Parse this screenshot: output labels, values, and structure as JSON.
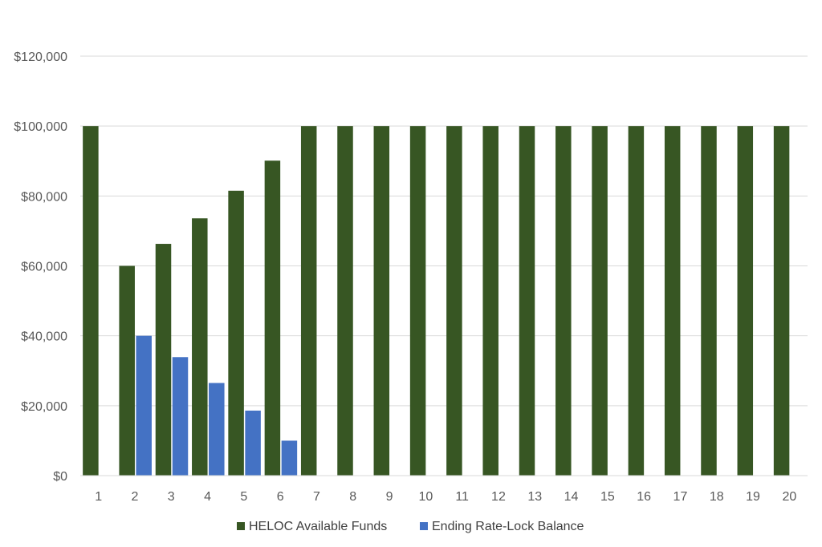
{
  "chart_data": {
    "type": "bar",
    "title": "",
    "xlabel": "",
    "ylabel": "",
    "categories": [
      "1",
      "2",
      "3",
      "4",
      "5",
      "6",
      "7",
      "8",
      "9",
      "10",
      "11",
      "12",
      "13",
      "14",
      "15",
      "16",
      "17",
      "18",
      "19",
      "20"
    ],
    "series": [
      {
        "name": "HELOC Available Funds",
        "color": "#375623",
        "values": [
          100000,
          60000,
          66300,
          73600,
          81500,
          90100,
          100000,
          100000,
          100000,
          100000,
          100000,
          100000,
          100000,
          100000,
          100000,
          100000,
          100000,
          100000,
          100000,
          100000
        ]
      },
      {
        "name": "Ending Rate-Lock Balance",
        "color": "#4472C4",
        "values": [
          0,
          40000,
          33900,
          26500,
          18600,
          10000,
          0,
          0,
          0,
          0,
          0,
          0,
          0,
          0,
          0,
          0,
          0,
          0,
          0,
          0
        ]
      }
    ],
    "ylim": [
      0,
      120000
    ],
    "y_ticks": [
      0,
      20000,
      40000,
      60000,
      80000,
      100000,
      120000
    ],
    "y_tick_labels": [
      "$0",
      "$20,000",
      "$40,000",
      "$60,000",
      "$80,000",
      "$100,000",
      "$120,000"
    ],
    "grid": true,
    "gridline_color": "#D9D9D9",
    "legend_position": "bottom"
  }
}
